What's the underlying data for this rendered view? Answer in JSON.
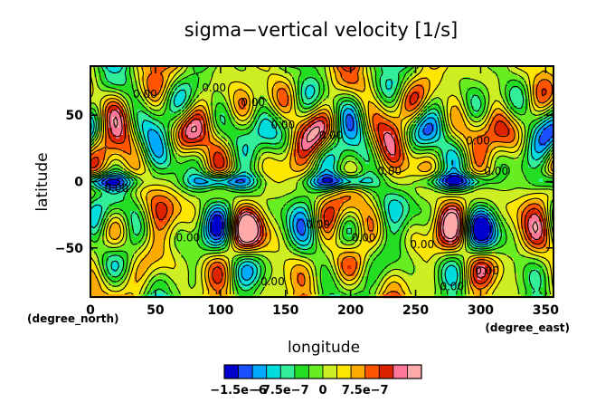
{
  "chart_data": {
    "type": "heatmap",
    "title": "sigma−vertical velocity [1/s]",
    "xlabel": "longitude",
    "ylabel": "latitude",
    "x_unit_label": "(degree_east)",
    "y_unit_label": "(degree_north)",
    "xlim": [
      0,
      356
    ],
    "ylim": [
      -87,
      87
    ],
    "x_ticks": [
      {
        "value": 0,
        "label": "0"
      },
      {
        "value": 50,
        "label": "50"
      },
      {
        "value": 100,
        "label": "100"
      },
      {
        "value": 150,
        "label": "150"
      },
      {
        "value": 200,
        "label": "200"
      },
      {
        "value": 250,
        "label": "250"
      },
      {
        "value": 300,
        "label": "300"
      },
      {
        "value": 350,
        "label": "350"
      }
    ],
    "y_ticks": [
      {
        "value": 50,
        "label": "50"
      },
      {
        "value": 0,
        "label": "0"
      },
      {
        "value": -50,
        "label": "−50"
      }
    ],
    "contour_label_text": "0.00",
    "contour_labels": [
      {
        "lon": 42,
        "lat": 63
      },
      {
        "lon": 95,
        "lat": 68
      },
      {
        "lon": 125,
        "lat": 57
      },
      {
        "lon": 148,
        "lat": 40
      },
      {
        "lon": 185,
        "lat": 32
      },
      {
        "lon": 230,
        "lat": 5
      },
      {
        "lon": 298,
        "lat": 28
      },
      {
        "lon": 312,
        "lat": 5
      },
      {
        "lon": 20,
        "lat": -8
      },
      {
        "lon": 75,
        "lat": -45
      },
      {
        "lon": 175,
        "lat": -35
      },
      {
        "lon": 210,
        "lat": -45
      },
      {
        "lon": 255,
        "lat": -50
      },
      {
        "lon": 305,
        "lat": -70
      },
      {
        "lon": 140,
        "lat": -78
      },
      {
        "lon": 278,
        "lat": -82
      }
    ],
    "colorbar": {
      "colors": [
        "#0000cc",
        "#1a50ff",
        "#00aaff",
        "#00dddd",
        "#33ee99",
        "#22dd22",
        "#66ee22",
        "#ccee22",
        "#ffe600",
        "#ffaa00",
        "#ff5500",
        "#dd2200",
        "#ff7799",
        "#ffaaaa"
      ],
      "tick_labels": [
        "−1.5e−6",
        "−7.5e−7",
        "0",
        "7.5e−7"
      ]
    }
  }
}
